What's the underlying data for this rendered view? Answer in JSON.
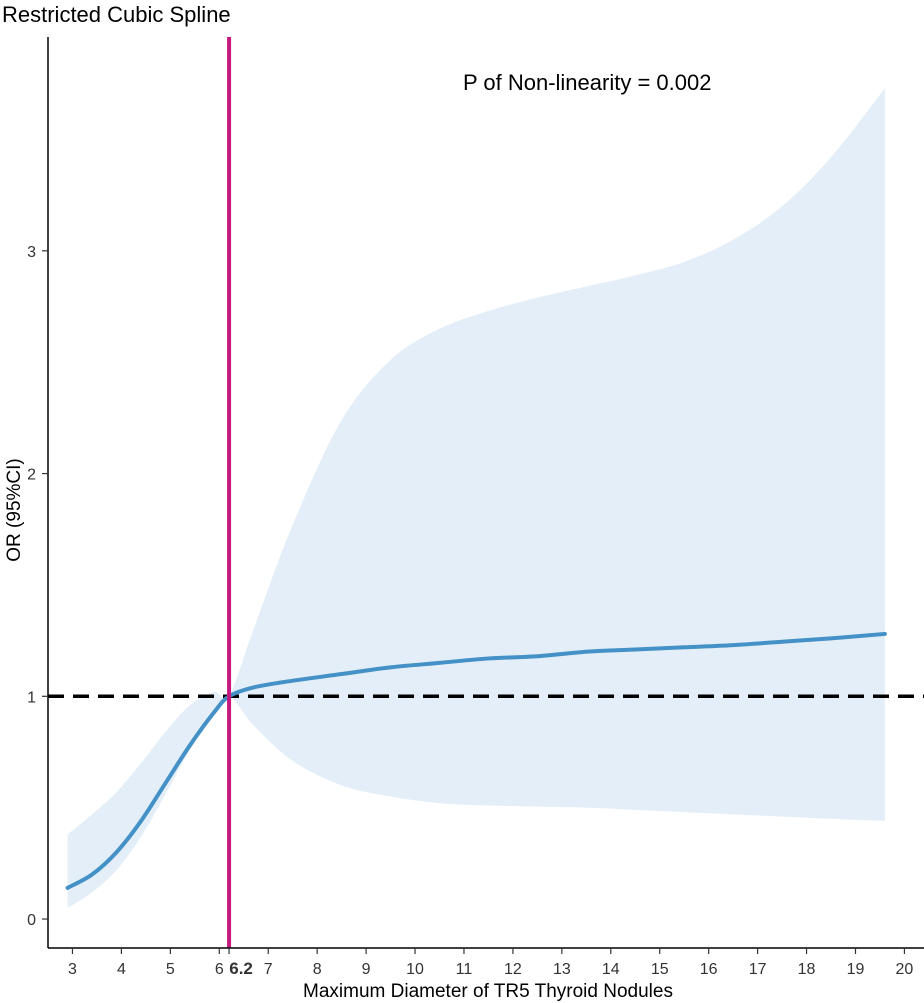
{
  "chart_data": {
    "type": "line",
    "title": "Restricted Cubic Spline",
    "annotation": "P of Non-linearity = 0.002",
    "xlabel": "Maximum Diameter of TR5 Thyroid Nodules",
    "ylabel": "OR (95%CI)",
    "xlim": [
      2.5,
      20.4
    ],
    "ylim": [
      -0.13,
      3.96
    ],
    "x_ticks": [
      3,
      4,
      5,
      6,
      7,
      8,
      9,
      10,
      11,
      12,
      13,
      14,
      15,
      16,
      17,
      18,
      19,
      20
    ],
    "y_ticks": [
      0,
      1,
      2,
      3
    ],
    "reference_x": 6.2,
    "reference_x_label": "6.2",
    "reference_y": 1,
    "grid": false,
    "colors": {
      "curve": "#4391c6",
      "ci_band": "#e3eef8",
      "vertical_line": "#c6197f",
      "reference_line": "#000000"
    },
    "series": [
      {
        "x": [
          2.9,
          3.4,
          3.9,
          4.4,
          4.9,
          5.4,
          5.9,
          6.2,
          6.7,
          7.5,
          8.5,
          9.5,
          10.5,
          11.5,
          12.5,
          13.5,
          14.5,
          15.5,
          16.5,
          17.5,
          18.5,
          19.6
        ],
        "y": [
          0.14,
          0.2,
          0.3,
          0.44,
          0.61,
          0.78,
          0.93,
          1.0,
          1.04,
          1.07,
          1.1,
          1.13,
          1.15,
          1.17,
          1.18,
          1.2,
          1.21,
          1.22,
          1.23,
          1.245,
          1.26,
          1.28
        ],
        "lower": [
          0.05,
          0.12,
          0.22,
          0.37,
          0.56,
          0.76,
          0.92,
          1.0,
          0.87,
          0.71,
          0.6,
          0.55,
          0.52,
          0.51,
          0.505,
          0.5,
          0.49,
          0.48,
          0.47,
          0.46,
          0.45,
          0.44
        ],
        "upper": [
          0.38,
          0.47,
          0.57,
          0.7,
          0.84,
          0.96,
          1.02,
          1.0,
          1.3,
          1.77,
          2.24,
          2.51,
          2.65,
          2.73,
          2.79,
          2.84,
          2.89,
          2.95,
          3.05,
          3.2,
          3.42,
          3.73
        ]
      }
    ]
  }
}
